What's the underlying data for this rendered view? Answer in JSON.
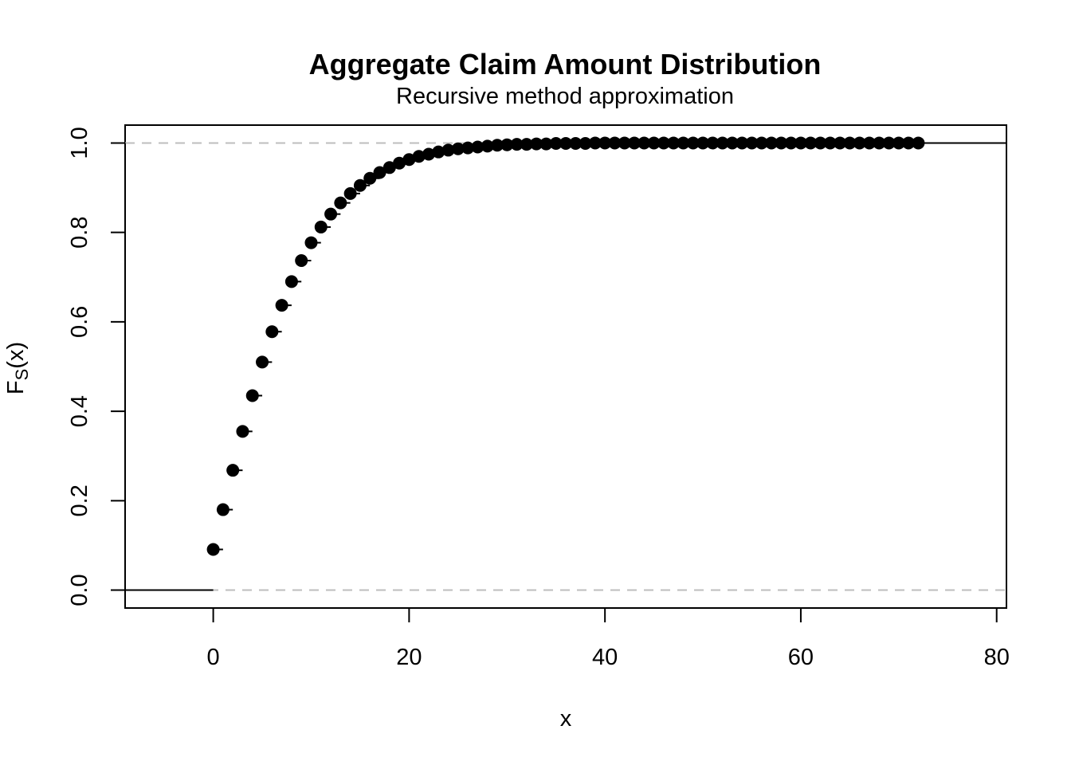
{
  "chart_data": {
    "type": "scatter",
    "title": "Aggregate Claim Amount Distribution",
    "subtitle": "Recursive method approximation",
    "xlabel": "x",
    "ylabel_main": "F",
    "ylabel_sub": "S",
    "ylabel_tail": "(x)",
    "xlim": [
      -9,
      81
    ],
    "ylim": [
      -0.04,
      1.04
    ],
    "x_ticks": [
      0,
      20,
      40,
      60,
      80
    ],
    "x_tick_labels": [
      "0",
      "20",
      "40",
      "60",
      "80"
    ],
    "y_ticks": [
      0.0,
      0.2,
      0.4,
      0.6,
      0.8,
      1.0
    ],
    "y_tick_labels": [
      "0.0",
      "0.2",
      "0.4",
      "0.6",
      "0.8",
      "1.0"
    ],
    "reference_lines": [
      0,
      1
    ],
    "grid": false,
    "series": [
      {
        "style": "step-cdf",
        "x": [
          0,
          1,
          2,
          3,
          4,
          5,
          6,
          7,
          8,
          9,
          10,
          11,
          12,
          13,
          14,
          15,
          16,
          17,
          18,
          19,
          20,
          21,
          22,
          23,
          24,
          25,
          26,
          27,
          28,
          29,
          30,
          31,
          32,
          33,
          34,
          35,
          36,
          37,
          38,
          39,
          40,
          41,
          42,
          43,
          44,
          45,
          46,
          47,
          48,
          49,
          50,
          51,
          52,
          53,
          54,
          55,
          56,
          57,
          58,
          59,
          60,
          61,
          62,
          63,
          64,
          65,
          66,
          67,
          68,
          69,
          70,
          71,
          72
        ],
        "y": [
          0.091,
          0.18,
          0.268,
          0.355,
          0.435,
          0.51,
          0.578,
          0.637,
          0.69,
          0.737,
          0.777,
          0.812,
          0.841,
          0.866,
          0.887,
          0.905,
          0.921,
          0.934,
          0.945,
          0.955,
          0.963,
          0.97,
          0.975,
          0.98,
          0.984,
          0.987,
          0.989,
          0.991,
          0.993,
          0.995,
          0.996,
          0.997,
          0.997,
          0.998,
          0.998,
          0.999,
          0.999,
          0.999,
          0.999,
          1.0,
          1.0,
          1.0,
          1.0,
          1.0,
          1.0,
          1.0,
          1.0,
          1.0,
          1.0,
          1.0,
          1.0,
          1.0,
          1.0,
          1.0,
          1.0,
          1.0,
          1.0,
          1.0,
          1.0,
          1.0,
          1.0,
          1.0,
          1.0,
          1.0,
          1.0,
          1.0,
          1.0,
          1.0,
          1.0,
          1.0,
          1.0,
          1.0,
          1.0
        ]
      }
    ],
    "colors": {
      "points": "#000000",
      "reference": "#bebebe",
      "axis": "#000000"
    }
  }
}
